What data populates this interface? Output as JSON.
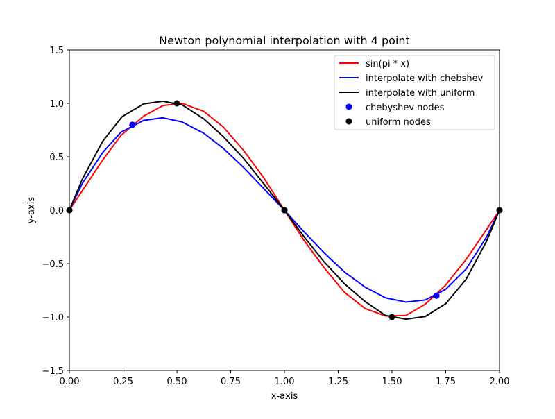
{
  "chart_data": {
    "type": "line",
    "title": "Newton polynomial interpolation with 4 point",
    "xlabel": "x-axis",
    "ylabel": "y-axis",
    "xlim": [
      0,
      2
    ],
    "ylim": [
      -1.5,
      1.5
    ],
    "xticks": [
      0,
      0.25,
      0.5,
      0.75,
      1,
      1.25,
      1.5,
      1.75,
      2
    ],
    "xtick_labels": [
      "0.00",
      "0.25",
      "0.50",
      "0.75",
      "1.00",
      "1.25",
      "1.50",
      "1.75",
      "2.00"
    ],
    "yticks": [
      -1.5,
      -1,
      -0.5,
      0,
      0.5,
      1,
      1.5
    ],
    "ytick_labels": [
      "−1.5",
      "−1.0",
      "−0.5",
      "0.0",
      "0.5",
      "1.0",
      "1.5"
    ],
    "grid": false,
    "legend_position": "top-right",
    "series": [
      {
        "name": "sin(pi * x)",
        "kind": "line",
        "color": "#ff0000",
        "x": [
          0,
          0.155,
          0.24,
          0.345,
          0.435,
          0.525,
          0.625,
          0.715,
          0.81,
          0.905,
          1.0,
          1.09,
          1.185,
          1.28,
          1.375,
          1.47,
          1.565,
          1.655,
          1.75,
          1.845,
          1.94,
          2.0
        ],
        "y": [
          0,
          0.47,
          0.7,
          0.88,
          0.98,
          1.0,
          0.925,
          0.78,
          0.56,
          0.3,
          0.0,
          -0.28,
          -0.54,
          -0.77,
          -0.92,
          -0.99,
          -0.985,
          -0.88,
          -0.7,
          -0.46,
          -0.18,
          0.0
        ]
      },
      {
        "name": "interpolate with chebshev",
        "kind": "line",
        "color": "#0000ff",
        "x": [
          0,
          0.06,
          0.155,
          0.24,
          0.345,
          0.435,
          0.525,
          0.625,
          0.715,
          0.81,
          0.905,
          1.0,
          1.09,
          1.185,
          1.28,
          1.375,
          1.47,
          1.565,
          1.655,
          1.75,
          1.845,
          1.94,
          2.0
        ],
        "y": [
          0,
          0.25,
          0.54,
          0.73,
          0.84,
          0.865,
          0.825,
          0.72,
          0.58,
          0.4,
          0.2,
          0.0,
          -0.2,
          -0.4,
          -0.58,
          -0.72,
          -0.82,
          -0.86,
          -0.84,
          -0.74,
          -0.55,
          -0.25,
          0.0
        ]
      },
      {
        "name": "interpolate with uniform",
        "kind": "line",
        "color": "#000000",
        "x": [
          0,
          0.06,
          0.155,
          0.245,
          0.345,
          0.435,
          0.525,
          0.625,
          0.715,
          0.81,
          0.905,
          1.0,
          1.09,
          1.185,
          1.28,
          1.375,
          1.47,
          1.565,
          1.655,
          1.75,
          1.845,
          1.94,
          2.0
        ],
        "y": [
          0,
          0.29,
          0.645,
          0.875,
          0.995,
          1.02,
          0.985,
          0.855,
          0.69,
          0.485,
          0.245,
          0.0,
          -0.245,
          -0.485,
          -0.69,
          -0.855,
          -0.985,
          -1.02,
          -0.995,
          -0.875,
          -0.645,
          -0.29,
          0.0
        ]
      },
      {
        "name": "chebyshev nodes",
        "kind": "scatter",
        "color": "#0000ff",
        "x": [
          0,
          0.293,
          1.0,
          1.707,
          2.0
        ],
        "y": [
          0,
          0.8,
          0.0,
          -0.8,
          0.0
        ]
      },
      {
        "name": "uniform nodes",
        "kind": "scatter",
        "color": "#000000",
        "x": [
          0,
          0.5,
          1.0,
          1.5,
          2.0
        ],
        "y": [
          0,
          1.0,
          0.0,
          -1.0,
          0.0
        ]
      }
    ]
  }
}
